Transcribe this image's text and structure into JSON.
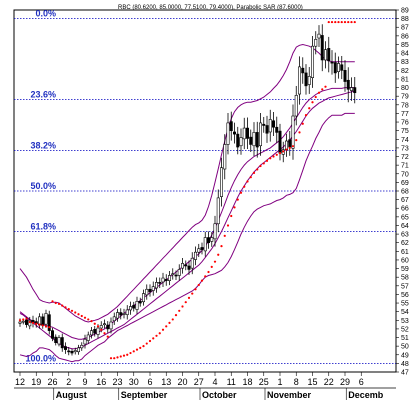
{
  "chart_data": {
    "type": "candlestick",
    "title": "RBC (80.6200, 85.0000, 77.5100, 79.4000), Parabolic SAR (87.6000)",
    "ohlc_readout": {
      "open": 80.62,
      "high": 85.0,
      "low": 77.51,
      "close": 79.4
    },
    "parabolic_sar_value": 87.6,
    "ylim": [
      47,
      89
    ],
    "y_ticks": [
      47,
      48,
      49,
      50,
      51,
      52,
      53,
      54,
      55,
      56,
      57,
      58,
      59,
      60,
      61,
      62,
      63,
      64,
      65,
      66,
      67,
      68,
      69,
      70,
      71,
      72,
      73,
      74,
      75,
      76,
      77,
      78,
      79,
      80,
      81,
      82,
      83,
      84,
      85,
      86,
      87,
      88,
      89
    ],
    "x_ticks": [
      "12",
      "19",
      "26",
      "2",
      "9",
      "16",
      "23",
      "30",
      "6",
      "13",
      "20",
      "27",
      "4",
      "11",
      "18",
      "25",
      "1",
      "8",
      "15",
      "22",
      "29",
      "6"
    ],
    "x_tick_index": [
      0,
      5,
      10,
      15,
      20,
      25,
      30,
      35,
      40,
      45,
      50,
      55,
      60,
      65,
      70,
      75,
      80,
      85,
      90,
      95,
      100,
      105
    ],
    "months": [
      {
        "label": "August",
        "index": 15
      },
      {
        "label": "September",
        "index": 35
      },
      {
        "label": "October",
        "index": 60
      },
      {
        "label": "November",
        "index": 80
      },
      {
        "label": "Decemb",
        "index": 105
      }
    ],
    "fib_levels": [
      {
        "label": "0.0%",
        "value": 88.0
      },
      {
        "label": "23.6%",
        "value": 78.6
      },
      {
        "label": "38.2%",
        "value": 72.7
      },
      {
        "label": "50.0%",
        "value": 68.0
      },
      {
        "label": "61.8%",
        "value": 63.3
      },
      {
        "label": "100.0%",
        "value": 48.0
      }
    ],
    "prices": {
      "i0": 0,
      "i1": 103,
      "close": [
        52.8,
        52.9,
        52.5,
        53.0,
        52.7,
        52.6,
        53.4,
        52.4,
        53.8,
        51.8,
        50.9,
        50.4,
        51.0,
        49.8,
        49.6,
        49.4,
        49.2,
        49.5,
        49.8,
        50.1,
        50.8,
        51.3,
        51.8,
        51.5,
        52.1,
        52.4,
        52.6,
        52.0,
        52.8,
        53.4,
        53.9,
        53.6,
        53.8,
        54.2,
        54.6,
        54.4,
        55.2,
        55.0,
        56.1,
        56.6,
        56.3,
        56.9,
        57.4,
        57.3,
        57.9,
        57.6,
        58.2,
        58.4,
        58.2,
        58.9,
        59.6,
        59.3,
        58.9,
        60.2,
        60.9,
        61.3,
        61.2,
        62.6,
        62.0,
        62.6,
        64.2,
        67.2,
        70.7,
        73.4,
        75.9,
        75.0,
        74.6,
        73.1,
        74.2,
        75.3,
        74.1,
        73.4,
        74.8,
        73.1,
        75.9,
        75.6,
        74.7,
        76.3,
        75.4,
        74.8,
        72.4,
        72.8,
        73.8,
        73.1,
        76.7,
        79.1,
        82.4,
        81.7,
        80.2,
        81.3,
        84.8,
        85.6,
        86.2,
        83.2,
        84.4,
        83.1,
        82.9,
        81.7,
        82.8,
        82.0,
        80.7,
        79.8,
        80.0,
        79.4
      ],
      "range": [
        1.2,
        0.8,
        1.0,
        1.1,
        1.5,
        1.3,
        1.2,
        1.1,
        1.2,
        1.3,
        0.9,
        0.9,
        0.8,
        1.3,
        1.4,
        1.3,
        0.8,
        0.9,
        1.0,
        1.0,
        1.5,
        1.1,
        1.2,
        1.1,
        1.3,
        1.4,
        1.4,
        1.3,
        1.5,
        1.4,
        1.2,
        1.4,
        1.5,
        1.6,
        1.6,
        1.1,
        1.5,
        1.2,
        1.3,
        1.6,
        1.6,
        1.7,
        1.6,
        1.6,
        1.7,
        1.7,
        1.5,
        1.8,
        1.5,
        1.7,
        1.8,
        1.4,
        1.8,
        2.0,
        1.9,
        1.6,
        1.6,
        1.9,
        2.0,
        1.8,
        2.6,
        2.8,
        3.3,
        3.4,
        3.3,
        3.3,
        3.1,
        2.4,
        3.0,
        3.4,
        3.5,
        2.5,
        3.4,
        3.5,
        3.3,
        2.4,
        3.2,
        3.2,
        2.9,
        3.5,
        2.4,
        2.6,
        2.4,
        2.9,
        3.8,
        3.1,
        3.5,
        3.6,
        2.9,
        3.1,
        3.4,
        2.7,
        3.0,
        3.7,
        2.8,
        3.8,
        4.0,
        3.3,
        2.3,
        2.9,
        3.4,
        4.3,
        3.4,
        3.5
      ]
    },
    "bollinger": {
      "i0": 0,
      "i1": 103,
      "upper": [
        59.0,
        58.5,
        58.0,
        57.3,
        56.6,
        56.0,
        55.4,
        55.2,
        55.1,
        55.0,
        55.1,
        55.1,
        55.0,
        54.7,
        54.4,
        54.1,
        53.8,
        53.5,
        53.3,
        53.1,
        52.9,
        52.8,
        52.9,
        53.0,
        53.1,
        53.3,
        53.5,
        53.7,
        54.0,
        54.3,
        54.6,
        55.0,
        55.4,
        55.8,
        56.2,
        56.6,
        57.0,
        57.4,
        57.8,
        58.2,
        58.6,
        59.0,
        59.4,
        59.8,
        60.2,
        60.6,
        61.0,
        61.4,
        61.8,
        62.2,
        62.6,
        63.0,
        63.4,
        63.8,
        64.1,
        64.3,
        64.6,
        65.2,
        66.2,
        67.5,
        69.0,
        70.6,
        72.2,
        73.8,
        75.3,
        76.4,
        77.2,
        77.7,
        78.0,
        78.2,
        78.3,
        78.3,
        78.4,
        78.5,
        78.7,
        78.9,
        79.2,
        79.5,
        79.9,
        80.3,
        80.8,
        81.4,
        82.1,
        83.0,
        84.0,
        84.7,
        84.9,
        85.0,
        84.9,
        84.8,
        84.6,
        84.3,
        84.0,
        83.6,
        83.3,
        83.1,
        83.0,
        83.0,
        83.0,
        83.0,
        83.0,
        83.0,
        83.0,
        83.0
      ],
      "middle": [
        54.0,
        53.7,
        53.4,
        53.1,
        52.9,
        52.7,
        52.6,
        52.5,
        52.4,
        52.3,
        52.2,
        52.0,
        51.8,
        51.6,
        51.4,
        51.2,
        51.0,
        50.9,
        50.8,
        50.8,
        50.9,
        51.0,
        51.2,
        51.4,
        51.6,
        51.8,
        52.0,
        52.3,
        52.6,
        52.9,
        53.2,
        53.5,
        53.8,
        54.1,
        54.4,
        54.7,
        55.0,
        55.3,
        55.6,
        55.9,
        56.2,
        56.5,
        56.8,
        57.1,
        57.4,
        57.7,
        58.0,
        58.3,
        58.6,
        58.9,
        59.2,
        59.5,
        59.8,
        60.1,
        60.4,
        60.7,
        61.1,
        61.6,
        62.2,
        62.9,
        63.7,
        64.6,
        65.5,
        66.5,
        67.5,
        68.4,
        69.2,
        69.9,
        70.5,
        71.0,
        71.4,
        71.7,
        72.0,
        72.2,
        72.4,
        72.6,
        72.8,
        73.0,
        73.3,
        73.6,
        73.9,
        74.3,
        74.8,
        75.3,
        75.9,
        76.5,
        77.1,
        77.7,
        78.2,
        78.6,
        78.9,
        79.2,
        79.4,
        79.6,
        79.7,
        79.8,
        79.9,
        79.9,
        79.9,
        79.9,
        80.0,
        80.0,
        80.0,
        80.0
      ],
      "lower": [
        49.0,
        48.9,
        48.8,
        48.9,
        49.2,
        49.4,
        49.8,
        49.8,
        49.7,
        49.6,
        49.3,
        48.9,
        48.6,
        48.5,
        48.4,
        48.3,
        48.2,
        48.3,
        48.3,
        48.5,
        48.9,
        49.2,
        49.5,
        49.8,
        50.1,
        50.3,
        50.5,
        50.9,
        51.2,
        51.5,
        51.8,
        52.0,
        52.2,
        52.4,
        52.6,
        52.8,
        53.0,
        53.2,
        53.4,
        53.6,
        53.8,
        54.0,
        54.2,
        54.4,
        54.6,
        54.8,
        55.0,
        55.2,
        55.4,
        55.6,
        55.8,
        56.0,
        56.2,
        56.4,
        56.7,
        57.1,
        57.6,
        58.0,
        58.2,
        58.3,
        58.4,
        58.6,
        58.8,
        59.2,
        59.7,
        60.4,
        61.2,
        62.1,
        63.0,
        63.8,
        64.5,
        65.1,
        65.6,
        65.9,
        66.1,
        66.3,
        66.4,
        66.5,
        66.7,
        66.9,
        67.0,
        67.2,
        67.5,
        67.6,
        67.8,
        68.3,
        69.3,
        70.4,
        71.5,
        72.4,
        73.2,
        74.1,
        74.8,
        75.6,
        76.1,
        76.5,
        76.8,
        76.8,
        76.8,
        76.8,
        77.0,
        77.0,
        77.0,
        77.0
      ]
    },
    "sma": {
      "i0": 0,
      "i1": 103,
      "values": [
        53.8,
        53.6,
        53.3,
        53.0,
        52.7,
        52.4,
        52.1,
        51.8,
        51.5,
        51.2,
        50.9,
        50.6,
        50.3,
        50.1,
        49.9,
        49.8,
        49.7,
        49.7,
        49.8,
        49.9,
        50.1,
        50.3,
        50.5,
        50.7,
        50.9,
        51.1,
        51.3,
        51.5,
        51.7,
        51.9,
        52.1,
        52.3,
        52.5,
        52.8,
        53.1,
        53.4,
        53.7,
        54.0,
        54.3,
        54.6,
        54.9,
        55.2,
        55.5,
        55.8,
        56.1,
        56.4,
        56.7,
        57.0,
        57.3,
        57.6,
        57.9,
        58.2,
        58.5,
        58.8,
        59.1,
        59.4,
        59.8,
        60.3,
        60.8,
        61.3,
        61.9,
        62.6,
        63.3,
        64.1,
        64.9,
        65.7,
        66.5,
        67.3,
        68.0,
        68.6,
        69.2,
        69.7,
        70.2,
        70.6,
        71.0,
        71.3,
        71.6,
        71.9,
        72.2,
        72.5,
        72.8,
        73.1,
        73.5,
        73.9,
        74.4,
        74.9,
        75.5,
        76.1,
        76.7,
        77.2,
        77.6,
        77.9,
        78.2,
        78.4,
        78.6,
        78.8,
        78.9,
        79.0,
        79.1,
        79.2,
        79.3,
        79.4,
        79.5,
        79.6
      ]
    },
    "parabolic_sar": {
      "i0": 0,
      "i1": 103,
      "values": [
        53.0,
        53.1,
        53.2,
        52.8,
        52.7,
        52.6,
        52.5,
        52.4,
        52.3,
        52.2,
        55.2,
        55.0,
        54.9,
        54.7,
        54.5,
        54.3,
        54.1,
        53.9,
        53.7,
        53.5,
        53.3,
        53.1,
        52.9,
        52.6,
        52.3,
        51.9,
        51.5,
        51.1,
        48.6,
        48.6,
        48.7,
        48.8,
        48.9,
        49.0,
        49.2,
        49.4,
        49.6,
        49.8,
        50.0,
        50.3,
        50.6,
        50.9,
        51.2,
        51.5,
        51.9,
        52.3,
        52.7,
        53.1,
        53.6,
        54.1,
        54.6,
        55.1,
        55.6,
        56.1,
        56.6,
        57.1,
        57.6,
        58.1,
        58.6,
        59.2,
        59.8,
        60.6,
        61.6,
        62.8,
        64.0,
        65.1,
        66.1,
        67.0,
        67.8,
        68.5,
        69.1,
        69.6,
        70.1,
        70.5,
        70.9,
        71.2,
        71.5,
        71.8,
        72.0,
        72.2,
        72.4,
        72.6,
        72.8,
        73.0,
        73.2,
        73.9,
        74.8,
        75.8,
        76.8,
        77.6,
        78.3,
        78.9,
        79.4,
        79.8,
        80.1,
        87.6,
        87.6,
        87.6,
        87.6,
        87.6,
        87.6,
        87.6,
        87.6,
        87.6
      ]
    },
    "colors": {
      "background": "#ffffff",
      "candle": "#000000",
      "bollinger": "#800080",
      "sma": "#800080",
      "parabolic_sar": "#ff0000",
      "fib_line": "#0000c0",
      "fib_text": "#2030c0"
    }
  }
}
